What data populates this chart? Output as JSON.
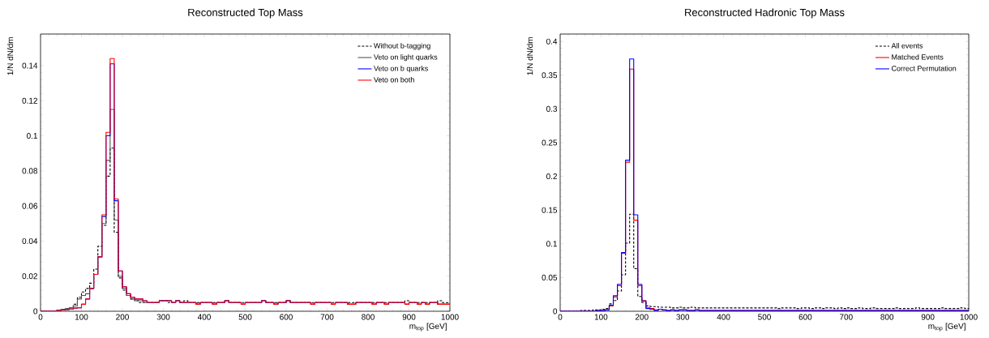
{
  "chart_data": [
    {
      "type": "histogram",
      "title": "Reconstructed Top Mass",
      "xlabel": "m$_{top}$ [GeV]",
      "ylabel": "1/N dN/dm",
      "bins": [
        0,
        10,
        20,
        30,
        40,
        50,
        60,
        70,
        80,
        90,
        100,
        110,
        120,
        130,
        140,
        150,
        160,
        170,
        180,
        190,
        200,
        210,
        220,
        230,
        240,
        250,
        260,
        270,
        280,
        290,
        300,
        310,
        320,
        330,
        340,
        350,
        360,
        370,
        380,
        390,
        400,
        410,
        420,
        430,
        440,
        450,
        460,
        470,
        480,
        490,
        500,
        510,
        520,
        530,
        540,
        550,
        560,
        570,
        580,
        590,
        600,
        610,
        620,
        630,
        640,
        650,
        660,
        670,
        680,
        690,
        700,
        710,
        720,
        730,
        740,
        750,
        760,
        770,
        780,
        790,
        800,
        810,
        820,
        830,
        840,
        850,
        860,
        870,
        880,
        890,
        900,
        910,
        920,
        930,
        940,
        950,
        960,
        970,
        980,
        990,
        1000
      ],
      "xlim": [
        0,
        1000
      ],
      "ylim": [
        0,
        0.158
      ],
      "xticks": [
        0,
        100,
        200,
        300,
        400,
        500,
        600,
        700,
        800,
        900,
        1000
      ],
      "yticks": [
        0,
        0.02,
        0.04,
        0.06,
        0.08,
        0.1,
        0.12,
        0.14
      ],
      "legend": "top right",
      "line_style": "solid",
      "series": [
        {
          "name": "Without b-tagging",
          "color": "#000000",
          "line_style": "dashed",
          "values": [
            0,
            0,
            0,
            0,
            0.0005,
            0.001,
            0.0015,
            0.002,
            0.004,
            0.008,
            0.011,
            0.013,
            0.016,
            0.024,
            0.037,
            0.049,
            0.077,
            0.093,
            0.045,
            0.019,
            0.012,
            0.009,
            0.007,
            0.006,
            0.005,
            0.005,
            0.005,
            0.005,
            0.005,
            0.006,
            0.006,
            0.005,
            0.005,
            0.006,
            0.005,
            0.006,
            0.005,
            0.005,
            0.005,
            0.005,
            0.005,
            0.005,
            0.005,
            0.005,
            0.005,
            0.006,
            0.005,
            0.005,
            0.005,
            0.005,
            0.005,
            0.005,
            0.005,
            0.005,
            0.006,
            0.005,
            0.005,
            0.005,
            0.005,
            0.005,
            0.006,
            0.005,
            0.005,
            0.005,
            0.005,
            0.005,
            0.005,
            0.005,
            0.005,
            0.005,
            0.005,
            0.005,
            0.005,
            0.005,
            0.005,
            0.005,
            0.005,
            0.005,
            0.005,
            0.005,
            0.005,
            0.005,
            0.005,
            0.005,
            0.005,
            0.005,
            0.005,
            0.005,
            0.005,
            0.006,
            0.005,
            0.005,
            0.005,
            0.005,
            0.005,
            0.005,
            0.005,
            0.006,
            0.005,
            0.005
          ]
        },
        {
          "name": "Veto on light quarks",
          "color": "#555555",
          "values": [
            0,
            0,
            0,
            0,
            0.0005,
            0.001,
            0.0015,
            0.002,
            0.003,
            0.007,
            0.009,
            0.01,
            0.013,
            0.021,
            0.031,
            0.05,
            0.086,
            0.115,
            0.052,
            0.02,
            0.013,
            0.009,
            0.007,
            0.006,
            0.006,
            0.005,
            0.005,
            0.005,
            0.005,
            0.006,
            0.006,
            0.006,
            0.005,
            0.006,
            0.005,
            0.005,
            0.005,
            0.005,
            0.004,
            0.005,
            0.005,
            0.005,
            0.004,
            0.005,
            0.005,
            0.006,
            0.005,
            0.005,
            0.005,
            0.004,
            0.005,
            0.005,
            0.005,
            0.005,
            0.006,
            0.005,
            0.005,
            0.004,
            0.005,
            0.005,
            0.006,
            0.005,
            0.005,
            0.005,
            0.005,
            0.005,
            0.004,
            0.005,
            0.005,
            0.005,
            0.005,
            0.004,
            0.005,
            0.005,
            0.005,
            0.004,
            0.004,
            0.005,
            0.005,
            0.005,
            0.005,
            0.004,
            0.005,
            0.005,
            0.004,
            0.005,
            0.005,
            0.005,
            0.005,
            0.004,
            0.005,
            0.005,
            0.004,
            0.005,
            0.004,
            0.005,
            0.005,
            0.004,
            0.004,
            0.004
          ]
        },
        {
          "name": "Veto on b quarks",
          "color": "#0000ff",
          "values": [
            0,
            0,
            0,
            0,
            0.0005,
            0.0008,
            0.001,
            0.0012,
            0.0018,
            0.002,
            0.004,
            0.007,
            0.013,
            0.021,
            0.031,
            0.054,
            0.1,
            0.141,
            0.063,
            0.023,
            0.014,
            0.01,
            0.008,
            0.007,
            0.007,
            0.006,
            0.005,
            0.005,
            0.005,
            0.006,
            0.006,
            0.006,
            0.005,
            0.006,
            0.005,
            0.005,
            0.005,
            0.005,
            0.004,
            0.005,
            0.005,
            0.005,
            0.004,
            0.005,
            0.005,
            0.006,
            0.005,
            0.005,
            0.005,
            0.004,
            0.005,
            0.005,
            0.005,
            0.005,
            0.006,
            0.005,
            0.005,
            0.004,
            0.005,
            0.005,
            0.006,
            0.005,
            0.005,
            0.005,
            0.005,
            0.005,
            0.004,
            0.005,
            0.005,
            0.005,
            0.005,
            0.004,
            0.005,
            0.005,
            0.005,
            0.004,
            0.004,
            0.005,
            0.005,
            0.005,
            0.005,
            0.004,
            0.005,
            0.005,
            0.004,
            0.005,
            0.005,
            0.005,
            0.005,
            0.004,
            0.005,
            0.005,
            0.004,
            0.005,
            0.004,
            0.005,
            0.005,
            0.004,
            0.004,
            0.004
          ]
        },
        {
          "name": "Veto on both",
          "color": "#ff0000",
          "values": [
            0,
            0,
            0,
            0,
            0.0005,
            0.0008,
            0.001,
            0.0012,
            0.0018,
            0.002,
            0.004,
            0.007,
            0.013,
            0.021,
            0.031,
            0.055,
            0.102,
            0.144,
            0.064,
            0.023,
            0.014,
            0.01,
            0.008,
            0.007,
            0.007,
            0.006,
            0.005,
            0.005,
            0.005,
            0.006,
            0.006,
            0.006,
            0.005,
            0.006,
            0.005,
            0.005,
            0.005,
            0.005,
            0.004,
            0.005,
            0.005,
            0.005,
            0.004,
            0.005,
            0.005,
            0.006,
            0.005,
            0.005,
            0.005,
            0.004,
            0.005,
            0.005,
            0.005,
            0.005,
            0.006,
            0.005,
            0.005,
            0.004,
            0.005,
            0.005,
            0.006,
            0.005,
            0.005,
            0.005,
            0.005,
            0.005,
            0.004,
            0.005,
            0.005,
            0.005,
            0.005,
            0.004,
            0.005,
            0.005,
            0.005,
            0.004,
            0.004,
            0.005,
            0.005,
            0.005,
            0.005,
            0.004,
            0.005,
            0.005,
            0.004,
            0.005,
            0.005,
            0.005,
            0.005,
            0.004,
            0.005,
            0.005,
            0.004,
            0.005,
            0.004,
            0.005,
            0.005,
            0.004,
            0.004,
            0.004
          ]
        }
      ]
    },
    {
      "type": "histogram",
      "title": "Reconstructed Hadronic Top Mass",
      "xlabel": "m$_{top}$ [GeV]",
      "ylabel": "1/N dN/dm",
      "bins": [
        0,
        10,
        20,
        30,
        40,
        50,
        60,
        70,
        80,
        90,
        100,
        110,
        120,
        130,
        140,
        150,
        160,
        170,
        180,
        190,
        200,
        210,
        220,
        230,
        240,
        250,
        260,
        270,
        280,
        290,
        300,
        310,
        320,
        330,
        340,
        350,
        360,
        370,
        380,
        390,
        400,
        410,
        420,
        430,
        440,
        450,
        460,
        470,
        480,
        490,
        500,
        510,
        520,
        530,
        540,
        550,
        560,
        570,
        580,
        590,
        600,
        610,
        620,
        630,
        640,
        650,
        660,
        670,
        680,
        690,
        700,
        710,
        720,
        730,
        740,
        750,
        760,
        770,
        780,
        790,
        800,
        810,
        820,
        830,
        840,
        850,
        860,
        870,
        880,
        890,
        900,
        910,
        920,
        930,
        940,
        950,
        960,
        970,
        980,
        990,
        1000
      ],
      "xlim": [
        0,
        1000
      ],
      "ylim": [
        0,
        0.411
      ],
      "xticks": [
        0,
        100,
        200,
        300,
        400,
        500,
        600,
        700,
        800,
        900,
        1000
      ],
      "yticks": [
        0,
        0.05,
        0.1,
        0.15,
        0.2,
        0.25,
        0.3,
        0.35,
        0.4
      ],
      "legend": "top right",
      "line_style": "solid",
      "series": [
        {
          "name": "All events",
          "color": "#000000",
          "line_style": "dashed",
          "values": [
            0,
            0,
            0,
            0,
            0,
            0.001,
            0.001,
            0.001,
            0.002,
            0.002,
            0.003,
            0.004,
            0.011,
            0.016,
            0.03,
            0.054,
            0.101,
            0.144,
            0.063,
            0.022,
            0.013,
            0.008,
            0.007,
            0.007,
            0.006,
            0.006,
            0.006,
            0.005,
            0.005,
            0.006,
            0.005,
            0.005,
            0.006,
            0.005,
            0.005,
            0.005,
            0.005,
            0.005,
            0.005,
            0.005,
            0.005,
            0.005,
            0.005,
            0.005,
            0.005,
            0.005,
            0.005,
            0.005,
            0.005,
            0.005,
            0.005,
            0.005,
            0.005,
            0.004,
            0.005,
            0.005,
            0.005,
            0.005,
            0.004,
            0.005,
            0.005,
            0.004,
            0.005,
            0.005,
            0.004,
            0.005,
            0.005,
            0.004,
            0.005,
            0.004,
            0.005,
            0.004,
            0.004,
            0.005,
            0.004,
            0.004,
            0.005,
            0.004,
            0.004,
            0.004,
            0.004,
            0.004,
            0.005,
            0.004,
            0.004,
            0.004,
            0.004,
            0.005,
            0.004,
            0.004,
            0.004,
            0.004,
            0.004,
            0.005,
            0.004,
            0.004,
            0.004,
            0.004,
            0.005,
            0.004
          ]
        },
        {
          "name": "Matched Events",
          "color": "#ff0000",
          "values": [
            0,
            0,
            0,
            0,
            0,
            0,
            0,
            0,
            0,
            0.001,
            0.001,
            0.002,
            0.008,
            0.021,
            0.038,
            0.086,
            0.221,
            0.359,
            0.135,
            0.038,
            0.016,
            0.005,
            0.004,
            0.002,
            0.003,
            0.002,
            0.001,
            0.002,
            0.001,
            0.002,
            0.002,
            0.001,
            0.001,
            0.002,
            0.001,
            0.001,
            0.001,
            0.001,
            0.001,
            0.001,
            0.001,
            0.001,
            0.001,
            0.001,
            0.001,
            0.001,
            0.001,
            0.001,
            0.001,
            0.001,
            0.001,
            0.001,
            0.001,
            0.001,
            0.001,
            0.001,
            0.001,
            0.001,
            0.001,
            0.001,
            0.001,
            0.001,
            0.001,
            0.001,
            0.001,
            0.001,
            0.001,
            0.001,
            0.001,
            0.001,
            0.001,
            0.001,
            0.001,
            0.001,
            0.001,
            0.001,
            0.001,
            0.001,
            0.001,
            0.001,
            0.001,
            0.001,
            0.001,
            0.001,
            0.001,
            0.001,
            0.001,
            0.001,
            0.001,
            0.001,
            0.001,
            0.001,
            0.001,
            0.001,
            0.001,
            0.001,
            0.001,
            0.001,
            0.001,
            0.001
          ]
        },
        {
          "name": "Correct Permutation",
          "color": "#0000ff",
          "values": [
            0,
            0,
            0,
            0,
            0,
            0,
            0,
            0,
            0,
            0.001,
            0.001,
            0.002,
            0.009,
            0.023,
            0.04,
            0.087,
            0.224,
            0.374,
            0.143,
            0.04,
            0.015,
            0.004,
            0.003,
            0.001,
            0.003,
            0.002,
            0.001,
            0.002,
            0.001,
            0.002,
            0.002,
            0.001,
            0.001,
            0.002,
            0.001,
            0.001,
            0.001,
            0.001,
            0.001,
            0.001,
            0.001,
            0.001,
            0.001,
            0.001,
            0.001,
            0.001,
            0.001,
            0.001,
            0.001,
            0.001,
            0.001,
            0.001,
            0.001,
            0.001,
            0.001,
            0.001,
            0.001,
            0.001,
            0.001,
            0.001,
            0.001,
            0.001,
            0.001,
            0.001,
            0.001,
            0.001,
            0.001,
            0.001,
            0.001,
            0.001,
            0.001,
            0.001,
            0.001,
            0.001,
            0.001,
            0.001,
            0.001,
            0.001,
            0.001,
            0.001,
            0.001,
            0.001,
            0.001,
            0.001,
            0.001,
            0.001,
            0.001,
            0.001,
            0.001,
            0.001,
            0.001,
            0.001,
            0.001,
            0.001,
            0.001,
            0.001,
            0.001,
            0.001,
            0.001,
            0.001
          ]
        }
      ]
    }
  ]
}
